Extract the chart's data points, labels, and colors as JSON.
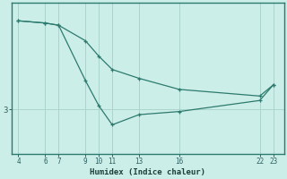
{
  "xlabel": "Humidex (Indice chaleur)",
  "background_color": "#cceee8",
  "line_color": "#2d7a6e",
  "grid_color": "#aad4cc",
  "tick_label_color": "#2d6060",
  "xlabel_color": "#1a3f3a",
  "line1_x": [
    4,
    6,
    7,
    9,
    10,
    11,
    13,
    16,
    22,
    23
  ],
  "line1_y": [
    5.0,
    4.95,
    4.9,
    4.55,
    4.2,
    3.9,
    3.7,
    3.45,
    3.3,
    3.55
  ],
  "line2_x": [
    4,
    6,
    7,
    9,
    10,
    11,
    13,
    16,
    22,
    23
  ],
  "line2_y": [
    5.0,
    4.95,
    4.9,
    3.65,
    3.08,
    2.65,
    2.88,
    2.95,
    3.2,
    3.55
  ],
  "xticks": [
    4,
    6,
    7,
    9,
    10,
    11,
    13,
    16,
    22,
    23
  ],
  "ytick_val": 3,
  "xlim": [
    3.5,
    23.8
  ],
  "ylim": [
    2.0,
    5.4
  ],
  "figsize": [
    3.2,
    2.0
  ],
  "dpi": 100
}
